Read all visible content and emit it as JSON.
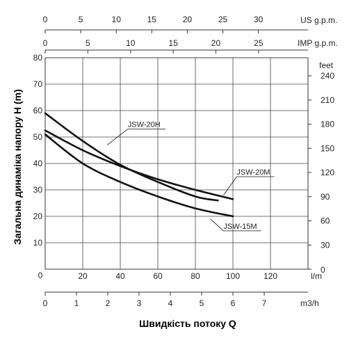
{
  "chart_data": {
    "type": "line",
    "xlabel": "Швидкість потоку Q",
    "ylabel": "Загальна динаміка напору H (m)",
    "x_unit": "l/m",
    "xlim": [
      0,
      140
    ],
    "ylim": [
      0,
      80
    ],
    "grid": true,
    "x_ticks": [
      0,
      20,
      40,
      60,
      80,
      100,
      120
    ],
    "y_ticks": [
      10,
      20,
      30,
      40,
      50,
      60,
      70,
      80
    ],
    "y_zero_label": "0",
    "secondary_axes": {
      "us_gpm": {
        "unit": "US g.p.m.",
        "factor": 3.7854,
        "ticks": [
          0,
          5,
          10,
          15,
          20,
          25,
          30
        ]
      },
      "imp_gpm": {
        "unit": "IMP g.p.m.",
        "factor": 4.5461,
        "ticks": [
          0,
          5,
          10,
          15,
          20,
          25
        ]
      },
      "m3h": {
        "unit": "m3/h",
        "factor": 16.6667,
        "ticks": [
          0,
          1,
          2,
          3,
          4,
          5,
          6,
          7
        ]
      },
      "feet": {
        "unit": "feet",
        "factor": 0.3048,
        "ticks": [
          0,
          30,
          60,
          90,
          120,
          150,
          180,
          210,
          240
        ]
      }
    },
    "series": [
      {
        "name": "JSW-20H",
        "x": [
          0,
          20,
          40,
          60,
          80,
          92
        ],
        "y": [
          59,
          48.5,
          39.5,
          33,
          27.5,
          26
        ],
        "label_at": [
          44,
          53
        ],
        "label_anchor": [
          33,
          47
        ]
      },
      {
        "name": "JSW-20M",
        "x": [
          0,
          20,
          40,
          60,
          80,
          100
        ],
        "y": [
          52.5,
          45,
          39,
          34,
          30,
          26.5
        ],
        "label_at": [
          102,
          35
        ],
        "label_anchor": [
          95,
          28
        ]
      },
      {
        "name": "JSW-15M",
        "x": [
          0,
          20,
          40,
          60,
          80,
          100
        ],
        "y": [
          51,
          40,
          33,
          27.5,
          23,
          20
        ],
        "label_at": [
          95,
          14.5
        ],
        "label_anchor": [
          88,
          19
        ]
      }
    ]
  }
}
